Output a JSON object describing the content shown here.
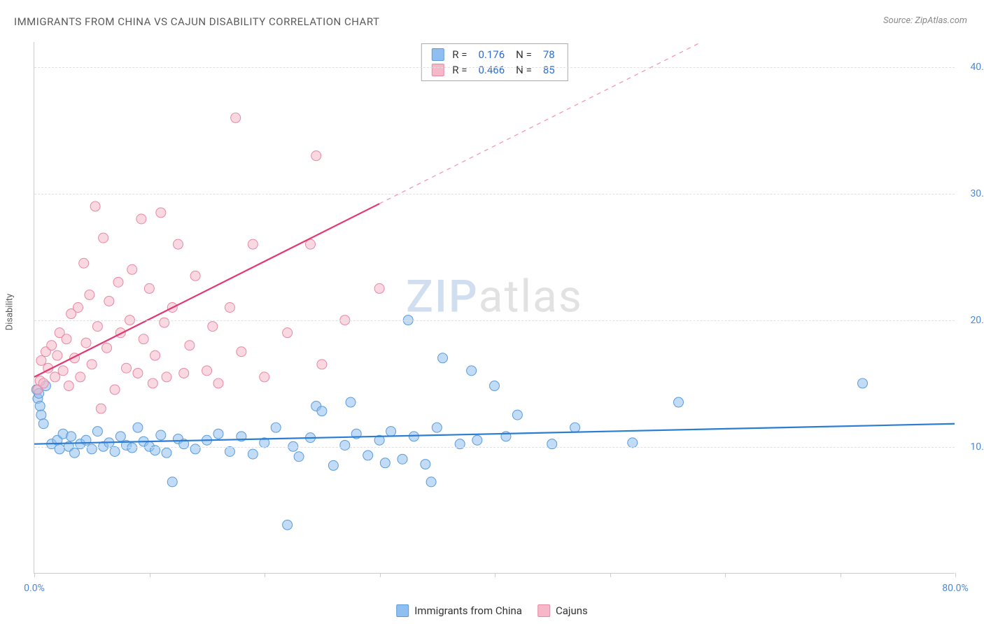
{
  "title": "IMMIGRANTS FROM CHINA VS CAJUN DISABILITY CORRELATION CHART",
  "source": "Source: ZipAtlas.com",
  "watermark": {
    "left": "ZIP",
    "right": "atlas"
  },
  "y_axis_label": "Disability",
  "chart": {
    "type": "scatter",
    "background_color": "#ffffff",
    "grid_color": "#e0e0e0",
    "axis_color": "#cccccc",
    "xlim": [
      0,
      80
    ],
    "ylim": [
      0,
      42
    ],
    "x_tick_positions": [
      0,
      10,
      20,
      30,
      40,
      50,
      60,
      70,
      80
    ],
    "x_tick_labels": {
      "0": "0.0%",
      "80": "80.0%"
    },
    "y_ticks": [
      10,
      20,
      30,
      40
    ],
    "y_tick_labels": {
      "10": "10.0%",
      "20": "20.0%",
      "30": "30.0%",
      "40": "40.0%"
    },
    "marker_radius": 7,
    "marker_opacity": 0.55,
    "line_width": 2.2,
    "label_fontsize": 14,
    "label_color": "#4d88d6",
    "series": [
      {
        "id": "china",
        "label": "Immigrants from China",
        "color": "#8fbff0",
        "stroke": "#5a9bd8",
        "line_color": "#2b7cd3",
        "R": "0.176",
        "N": "78",
        "trend": {
          "x1": 0,
          "y1": 10.2,
          "x2": 80,
          "y2": 11.8,
          "dashed_after": null
        },
        "points": [
          [
            0.2,
            14.5
          ],
          [
            0.3,
            13.8
          ],
          [
            0.4,
            14.2
          ],
          [
            0.5,
            13.2
          ],
          [
            0.6,
            12.5
          ],
          [
            0.8,
            11.8
          ],
          [
            1.0,
            14.8
          ],
          [
            1.5,
            10.2
          ],
          [
            2.0,
            10.5
          ],
          [
            2.2,
            9.8
          ],
          [
            2.5,
            11.0
          ],
          [
            3.0,
            10.0
          ],
          [
            3.2,
            10.8
          ],
          [
            3.5,
            9.5
          ],
          [
            4.0,
            10.2
          ],
          [
            4.5,
            10.5
          ],
          [
            5.0,
            9.8
          ],
          [
            5.5,
            11.2
          ],
          [
            6.0,
            10.0
          ],
          [
            6.5,
            10.3
          ],
          [
            7.0,
            9.6
          ],
          [
            7.5,
            10.8
          ],
          [
            8.0,
            10.1
          ],
          [
            8.5,
            9.9
          ],
          [
            9.0,
            11.5
          ],
          [
            9.5,
            10.4
          ],
          [
            10.0,
            10.0
          ],
          [
            10.5,
            9.7
          ],
          [
            11.0,
            10.9
          ],
          [
            11.5,
            9.5
          ],
          [
            12.0,
            7.2
          ],
          [
            12.5,
            10.6
          ],
          [
            13.0,
            10.2
          ],
          [
            14.0,
            9.8
          ],
          [
            15.0,
            10.5
          ],
          [
            16.0,
            11.0
          ],
          [
            17.0,
            9.6
          ],
          [
            18.0,
            10.8
          ],
          [
            19.0,
            9.4
          ],
          [
            20.0,
            10.3
          ],
          [
            21.0,
            11.5
          ],
          [
            22.0,
            3.8
          ],
          [
            22.5,
            10.0
          ],
          [
            23.0,
            9.2
          ],
          [
            24.0,
            10.7
          ],
          [
            24.5,
            13.2
          ],
          [
            25.0,
            12.8
          ],
          [
            26.0,
            8.5
          ],
          [
            27.0,
            10.1
          ],
          [
            27.5,
            13.5
          ],
          [
            28.0,
            11.0
          ],
          [
            29.0,
            9.3
          ],
          [
            30.0,
            10.5
          ],
          [
            30.5,
            8.7
          ],
          [
            31.0,
            11.2
          ],
          [
            32.0,
            9.0
          ],
          [
            32.5,
            20.0
          ],
          [
            33.0,
            10.8
          ],
          [
            34.0,
            8.6
          ],
          [
            34.5,
            7.2
          ],
          [
            35.0,
            11.5
          ],
          [
            35.5,
            17.0
          ],
          [
            37.0,
            10.2
          ],
          [
            38.0,
            16.0
          ],
          [
            38.5,
            10.5
          ],
          [
            40.0,
            14.8
          ],
          [
            41.0,
            10.8
          ],
          [
            42.0,
            12.5
          ],
          [
            45.0,
            10.2
          ],
          [
            47.0,
            11.5
          ],
          [
            52.0,
            10.3
          ],
          [
            56.0,
            13.5
          ],
          [
            72.0,
            15.0
          ]
        ]
      },
      {
        "id": "cajuns",
        "label": "Cajuns",
        "color": "#f6b8c8",
        "stroke": "#e688a3",
        "line_color": "#e63670",
        "R": "0.466",
        "N": "85",
        "trend": {
          "x1": 0,
          "y1": 15.5,
          "x2": 58,
          "y2": 42.0,
          "dashed_after": 30
        },
        "points": [
          [
            0.3,
            14.5
          ],
          [
            0.5,
            15.2
          ],
          [
            0.6,
            16.8
          ],
          [
            0.8,
            15.0
          ],
          [
            1.0,
            17.5
          ],
          [
            1.2,
            16.2
          ],
          [
            1.5,
            18.0
          ],
          [
            1.8,
            15.5
          ],
          [
            2.0,
            17.2
          ],
          [
            2.2,
            19.0
          ],
          [
            2.5,
            16.0
          ],
          [
            2.8,
            18.5
          ],
          [
            3.0,
            14.8
          ],
          [
            3.2,
            20.5
          ],
          [
            3.5,
            17.0
          ],
          [
            3.8,
            21.0
          ],
          [
            4.0,
            15.5
          ],
          [
            4.3,
            24.5
          ],
          [
            4.5,
            18.2
          ],
          [
            4.8,
            22.0
          ],
          [
            5.0,
            16.5
          ],
          [
            5.3,
            29.0
          ],
          [
            5.5,
            19.5
          ],
          [
            5.8,
            13.0
          ],
          [
            6.0,
            26.5
          ],
          [
            6.3,
            17.8
          ],
          [
            6.5,
            21.5
          ],
          [
            7.0,
            14.5
          ],
          [
            7.3,
            23.0
          ],
          [
            7.5,
            19.0
          ],
          [
            8.0,
            16.2
          ],
          [
            8.3,
            20.0
          ],
          [
            8.5,
            24.0
          ],
          [
            9.0,
            15.8
          ],
          [
            9.3,
            28.0
          ],
          [
            9.5,
            18.5
          ],
          [
            10.0,
            22.5
          ],
          [
            10.3,
            15.0
          ],
          [
            10.5,
            17.2
          ],
          [
            11.0,
            28.5
          ],
          [
            11.3,
            19.8
          ],
          [
            11.5,
            15.5
          ],
          [
            12.0,
            21.0
          ],
          [
            12.5,
            26.0
          ],
          [
            13.0,
            15.8
          ],
          [
            13.5,
            18.0
          ],
          [
            14.0,
            23.5
          ],
          [
            15.0,
            16.0
          ],
          [
            15.5,
            19.5
          ],
          [
            16.0,
            15.0
          ],
          [
            17.0,
            21.0
          ],
          [
            17.5,
            36.0
          ],
          [
            18.0,
            17.5
          ],
          [
            19.0,
            26.0
          ],
          [
            20.0,
            15.5
          ],
          [
            22.0,
            19.0
          ],
          [
            24.0,
            26.0
          ],
          [
            24.5,
            33.0
          ],
          [
            25.0,
            16.5
          ],
          [
            27.0,
            20.0
          ],
          [
            30.0,
            22.5
          ]
        ]
      }
    ]
  },
  "legend_top": {
    "R_label": "R  =",
    "N_label": "N  ="
  },
  "legend_bottom_labels": {
    "china": "Immigrants from China",
    "cajuns": "Cajuns"
  }
}
